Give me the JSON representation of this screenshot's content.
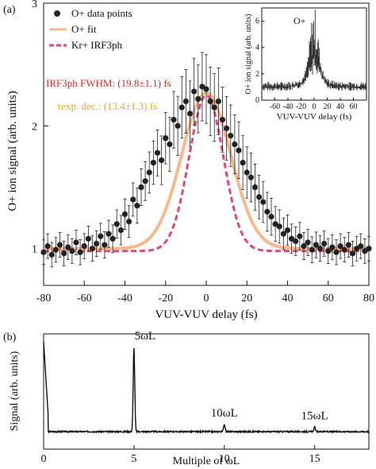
{
  "colors": {
    "points": "#222222",
    "fit": "#f7b98a",
    "irf": "#e0457b",
    "irf_text": "#d62a2a",
    "tau_text": "#e8a030",
    "axis": "#111111",
    "inset_fill": "#333333"
  },
  "chart_data": [
    {
      "panel": "(a)",
      "type": "scatter",
      "xlabel": "VUV-VUV delay (fs)",
      "ylabel": "O+ ion signal (arb. units)",
      "xlim": [
        -80,
        80
      ],
      "ylim": [
        0.7,
        3
      ],
      "xticks": [
        "-80",
        "-60",
        "-40",
        "-20",
        "0",
        "20",
        "40",
        "60",
        "80"
      ],
      "yticks": [
        "1",
        "2",
        "3"
      ],
      "legend": [
        "O+ data points",
        "O+ fit",
        "Kr+ IRF3ph"
      ],
      "annotations": {
        "irf": "IRF3ph FWHM: (19.8±1.1) fs",
        "tau": "τexp. dec.: (13.4±1.3) fs"
      },
      "series": [
        {
          "name": "O+ data points",
          "x": [
            -80,
            -78,
            -76,
            -74,
            -72,
            -70,
            -68,
            -66,
            -64,
            -62,
            -60,
            -58,
            -56,
            -54,
            -52,
            -50,
            -48,
            -46,
            -44,
            -42,
            -40,
            -38,
            -36,
            -34,
            -32,
            -30,
            -28,
            -26,
            -24,
            -22,
            -20,
            -18,
            -16,
            -14,
            -12,
            -10,
            -8,
            -6,
            -4,
            -2,
            0,
            2,
            4,
            6,
            8,
            10,
            12,
            14,
            16,
            18,
            20,
            22,
            24,
            26,
            28,
            30,
            32,
            34,
            36,
            38,
            40,
            42,
            44,
            46,
            48,
            50,
            52,
            54,
            56,
            58,
            60,
            62,
            64,
            66,
            68,
            70,
            72,
            74,
            76,
            78,
            80
          ],
          "y": [
            0.97,
            1.02,
            0.95,
            0.99,
            1.03,
            0.96,
            1.01,
            0.98,
            1.05,
            0.97,
            1.02,
            1.08,
            1.0,
            1.04,
            1.1,
            1.03,
            1.12,
            1.08,
            1.2,
            1.15,
            1.28,
            1.22,
            1.4,
            1.35,
            1.5,
            1.55,
            1.62,
            1.7,
            1.78,
            1.72,
            1.9,
            1.85,
            2.05,
            2.0,
            2.15,
            2.2,
            2.1,
            2.28,
            2.22,
            2.32,
            2.3,
            2.2,
            2.15,
            2.2,
            2.05,
            1.98,
            1.92,
            1.85,
            1.8,
            1.7,
            1.62,
            1.58,
            1.5,
            1.42,
            1.38,
            1.3,
            1.26,
            1.2,
            1.18,
            1.12,
            1.15,
            1.08,
            1.06,
            1.1,
            1.02,
            1.05,
            0.99,
            1.03,
            1.0,
            1.04,
            0.98,
            1.01,
            0.97,
            1.02,
            0.99,
            1.03,
            0.96,
            1.0,
            1.02,
            0.98,
            1.0
          ]
        },
        {
          "name": "O+ fit",
          "y0": 1.0,
          "amplitude": 1.27,
          "sigma_fs": 12
        },
        {
          "name": "Kr+ IRF3ph",
          "y0": 0.98,
          "amplitude": 1.27,
          "fwhm_fs": 19.8
        }
      ]
    },
    {
      "panel": "(a) inset",
      "type": "area",
      "label": "O+",
      "xlabel": "VUV-VUV delay (fs)",
      "ylabel": "O+ ion signal (arb. units)",
      "xlim": [
        -80,
        80
      ],
      "ylim": [
        0,
        7
      ],
      "xticks": [
        "-60",
        "-40",
        "-20",
        "0",
        "20",
        "40",
        "60"
      ],
      "yticks": [
        "0",
        "2",
        "4",
        "6"
      ]
    },
    {
      "panel": "(b)",
      "type": "line",
      "xlabel": "Multiple of ωL",
      "ylabel": "Signal (arb. units)",
      "xlim": [
        0,
        18
      ],
      "xticks": [
        "0",
        "5",
        "10",
        "15"
      ],
      "peaks": [
        {
          "label": "5ωL",
          "x": 5,
          "height": 0.92
        },
        {
          "label": "10ωL",
          "x": 10,
          "height": 0.08
        },
        {
          "label": "15ωL",
          "x": 15,
          "height": 0.05
        }
      ]
    }
  ]
}
